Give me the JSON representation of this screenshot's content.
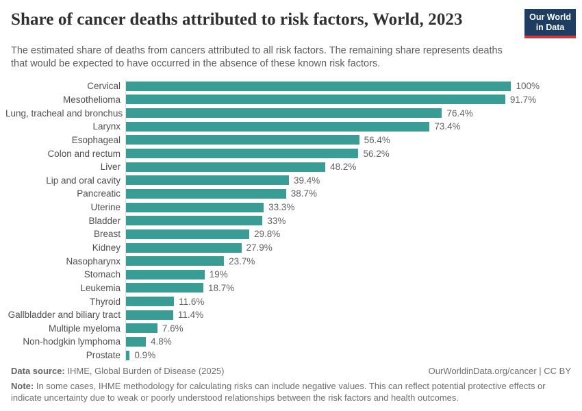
{
  "header": {
    "title": "Share of cancer deaths attributed to risk factors, World, 2023",
    "subtitle": "The estimated share of deaths from cancers attributed to all risk factors. The remaining share represents deaths that would be expected to have occurred in the absence of these known risk factors.",
    "logo": {
      "line1": "Our World",
      "line2": "in Data"
    }
  },
  "chart_data": {
    "type": "bar",
    "orientation": "horizontal",
    "title": "Share of cancer deaths attributed to risk factors, World, 2023",
    "categories": [
      "Cervical",
      "Mesothelioma",
      "Lung, tracheal and bronchus",
      "Larynx",
      "Esophageal",
      "Colon and rectum",
      "Liver",
      "Lip and oral cavity",
      "Pancreatic",
      "Uterine",
      "Bladder",
      "Breast",
      "Kidney",
      "Nasopharynx",
      "Stomach",
      "Leukemia",
      "Thyroid",
      "Gallbladder and biliary tract",
      "Multiple myeloma",
      "Non-hodgkin lymphoma",
      "Prostate"
    ],
    "values": [
      100,
      91.7,
      76.4,
      73.4,
      56.4,
      56.2,
      48.2,
      39.4,
      38.7,
      33.3,
      33,
      29.8,
      27.9,
      23.7,
      19,
      18.7,
      11.6,
      11.4,
      7.6,
      4.8,
      0.9
    ],
    "value_labels": [
      "100%",
      "91.7%",
      "76.4%",
      "73.4%",
      "56.4%",
      "56.2%",
      "48.2%",
      "39.4%",
      "38.7%",
      "33.3%",
      "33%",
      "29.8%",
      "27.9%",
      "23.7%",
      "19%",
      "18.7%",
      "11.6%",
      "11.4%",
      "7.6%",
      "4.8%",
      "0.9%"
    ],
    "xlim": [
      0,
      100
    ],
    "grid": false,
    "legend": "none",
    "bar_color": "#399d96"
  },
  "footer": {
    "data_source_label": "Data source:",
    "data_source_text": " IHME, Global Burden of Disease (2025)",
    "attribution": "OurWorldinData.org/cancer | CC BY",
    "note_label": "Note:",
    "note_text": " In some cases, IHME methodology for calculating risks can include negative values. This can reflect potential protective effects or indicate uncertainty due to weak or poorly understood relationships between the risk factors and health outcomes."
  },
  "colors": {
    "bar": "#399d96",
    "logo_navy": "#1d3d63",
    "logo_red": "#d0373f",
    "axis_line": "#dedede",
    "title_text": "#2f2f2f",
    "body_text": "#5c5c5c"
  }
}
